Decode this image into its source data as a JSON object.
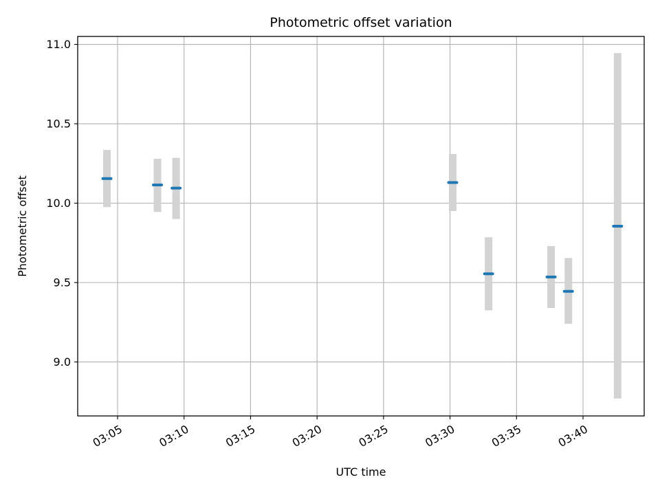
{
  "chart_data": {
    "type": "scatter",
    "title": "Photometric offset variation",
    "xlabel": "UTC time",
    "ylabel": "Photometric offset",
    "x_is_time": true,
    "xlim": [
      "03:02",
      "03:44.6"
    ],
    "ylim": [
      8.66,
      11.05
    ],
    "x_ticks": [
      "03:05",
      "03:10",
      "03:15",
      "03:20",
      "03:25",
      "03:30",
      "03:35",
      "03:40"
    ],
    "y_ticks": [
      "9.0",
      "9.5",
      "10.0",
      "10.5",
      "11.0"
    ],
    "grid": true,
    "points": [
      {
        "x": "03:04.2",
        "y": 10.155,
        "lower": 9.975,
        "upper": 10.335
      },
      {
        "x": "03:08.0",
        "y": 10.115,
        "lower": 9.945,
        "upper": 10.28
      },
      {
        "x": "03:09.4",
        "y": 10.095,
        "lower": 9.9,
        "upper": 10.285
      },
      {
        "x": "03:30.2",
        "y": 10.13,
        "lower": 9.95,
        "upper": 10.31
      },
      {
        "x": "03:32.9",
        "y": 9.555,
        "lower": 9.325,
        "upper": 9.785
      },
      {
        "x": "03:37.6",
        "y": 9.535,
        "lower": 9.34,
        "upper": 9.73
      },
      {
        "x": "03:38.9",
        "y": 9.445,
        "lower": 9.24,
        "upper": 9.655
      },
      {
        "x": "03:42.6",
        "y": 9.855,
        "lower": 8.77,
        "upper": 10.945
      }
    ],
    "colors": {
      "marker": "#1f77b4",
      "error_bar": "#d3d3d3",
      "grid": "#b0b0b0",
      "axes": "#000000"
    }
  }
}
